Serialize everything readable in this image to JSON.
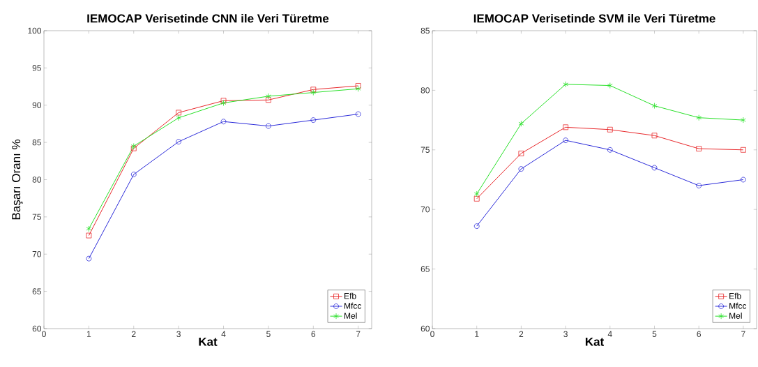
{
  "chart_data": [
    {
      "type": "line",
      "title": "IEMOCAP Verisetinde CNN ile Veri Türetme",
      "xlabel": "Kat",
      "ylabel": "Başarı Oranı %",
      "x": [
        1,
        2,
        3,
        4,
        5,
        6,
        7
      ],
      "xlim": [
        0,
        7.3
      ],
      "ylim": [
        60,
        100
      ],
      "xticks": [
        0,
        1,
        2,
        3,
        4,
        5,
        6,
        7
      ],
      "yticks": [
        60,
        65,
        70,
        75,
        80,
        85,
        90,
        95,
        100
      ],
      "legend": "bottom right",
      "line_style": "solid",
      "series": [
        {
          "name": "Efb",
          "color": "#e8282b",
          "marker": "square",
          "values": [
            72.5,
            84.2,
            89.0,
            90.6,
            90.7,
            92.1,
            92.6
          ]
        },
        {
          "name": "Mfcc",
          "color": "#2b2bd9",
          "marker": "circle",
          "values": [
            69.4,
            80.7,
            85.1,
            87.8,
            87.2,
            88.0,
            88.8
          ]
        },
        {
          "name": "Mel",
          "color": "#28e028",
          "marker": "cross",
          "values": [
            73.4,
            84.5,
            88.3,
            90.3,
            91.2,
            91.7,
            92.2
          ]
        }
      ]
    },
    {
      "type": "line",
      "title": "IEMOCAP Verisetinde SVM ile Veri Türetme",
      "xlabel": "Kat",
      "x": [
        1,
        2,
        3,
        4,
        5,
        6,
        7
      ],
      "xlim": [
        0,
        7.3
      ],
      "ylim": [
        60,
        85
      ],
      "xticks": [
        0,
        1,
        2,
        3,
        4,
        5,
        6,
        7
      ],
      "yticks": [
        60,
        65,
        70,
        75,
        80,
        85
      ],
      "legend": "bottom right",
      "line_style": "solid",
      "series": [
        {
          "name": "Efb",
          "color": "#e8282b",
          "marker": "square",
          "values": [
            70.9,
            74.7,
            76.9,
            76.7,
            76.2,
            75.1,
            75.0
          ]
        },
        {
          "name": "Mfcc",
          "color": "#2b2bd9",
          "marker": "circle",
          "values": [
            68.6,
            73.4,
            75.8,
            75.0,
            73.5,
            72.0,
            72.5
          ]
        },
        {
          "name": "Mel",
          "color": "#28e028",
          "marker": "cross",
          "values": [
            71.3,
            77.2,
            80.5,
            80.4,
            78.7,
            77.7,
            77.5
          ]
        }
      ]
    }
  ]
}
